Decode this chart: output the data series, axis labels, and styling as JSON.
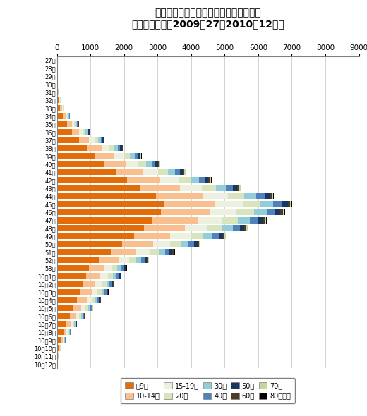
{
  "title": "東京都におけるインフルエンザの報告数",
  "subtitle": "（年齢階層別、2009年27〜2010年12週）",
  "xlim": [
    0,
    9000
  ],
  "xticks": [
    0,
    1000,
    2000,
    3000,
    4000,
    5000,
    6000,
    7000,
    8000,
    9000
  ],
  "weeks": [
    "27週",
    "28週",
    "29週",
    "30週",
    "31週",
    "32週",
    "33週",
    "34週",
    "35週",
    "36週",
    "37週",
    "38週",
    "39週",
    "40週",
    "41週",
    "42週",
    "43週",
    "44週",
    "45週",
    "46週",
    "47週",
    "48週",
    "49週",
    "50週",
    "51週",
    "52週",
    "53週",
    "10年1週",
    "10年2週",
    "10年3週",
    "10年4週",
    "10年5週",
    "10年6週",
    "10年7週",
    "10年8週",
    "10年9週",
    "10年10週",
    "10年11週",
    "10年12週"
  ],
  "colors": [
    "#e36c09",
    "#fabf8f",
    "#ebf1de",
    "#d7e4bc",
    "#92cddc",
    "#4f81bd",
    "#17375e",
    "#4d3b2c",
    "#c4d79b",
    "#000000"
  ],
  "legend_labels": [
    "〜9歳",
    "10-14歳",
    "15-19歳",
    "20代",
    "30代",
    "40代",
    "50代",
    "60代",
    "70代",
    "80歳以上"
  ],
  "data": [
    [
      3,
      1,
      0,
      0,
      0,
      0,
      0,
      0,
      0,
      0
    ],
    [
      4,
      1,
      0,
      0,
      0,
      0,
      0,
      0,
      0,
      0
    ],
    [
      6,
      2,
      1,
      1,
      1,
      0,
      0,
      0,
      0,
      0
    ],
    [
      15,
      6,
      3,
      3,
      2,
      2,
      1,
      0,
      0,
      0
    ],
    [
      30,
      14,
      8,
      5,
      4,
      3,
      2,
      1,
      0,
      0
    ],
    [
      55,
      26,
      14,
      9,
      7,
      5,
      3,
      1,
      1,
      0
    ],
    [
      100,
      47,
      26,
      17,
      12,
      8,
      5,
      2,
      1,
      1
    ],
    [
      180,
      85,
      46,
      30,
      22,
      15,
      9,
      4,
      2,
      1
    ],
    [
      300,
      141,
      77,
      50,
      36,
      25,
      15,
      7,
      4,
      2
    ],
    [
      450,
      212,
      115,
      75,
      54,
      38,
      22,
      11,
      6,
      3
    ],
    [
      650,
      306,
      167,
      108,
      78,
      54,
      32,
      16,
      9,
      5
    ],
    [
      900,
      424,
      231,
      150,
      108,
      75,
      45,
      22,
      12,
      7
    ],
    [
      1150,
      542,
      295,
      192,
      138,
      97,
      57,
      28,
      15,
      9
    ],
    [
      1400,
      660,
      359,
      234,
      169,
      118,
      70,
      34,
      19,
      11
    ],
    [
      1750,
      824,
      449,
      292,
      210,
      147,
      87,
      43,
      24,
      13
    ],
    [
      2100,
      989,
      539,
      350,
      252,
      177,
      105,
      51,
      28,
      16
    ],
    [
      2500,
      1178,
      641,
      417,
      300,
      210,
      125,
      61,
      34,
      19
    ],
    [
      2950,
      1390,
      757,
      492,
      354,
      248,
      147,
      72,
      40,
      22
    ],
    [
      3200,
      1508,
      821,
      534,
      384,
      269,
      160,
      78,
      43,
      24
    ],
    [
      3100,
      1461,
      795,
      517,
      372,
      261,
      155,
      76,
      42,
      23
    ],
    [
      2850,
      1343,
      731,
      476,
      342,
      240,
      142,
      70,
      38,
      21
    ],
    [
      2600,
      1225,
      667,
      434,
      312,
      219,
      130,
      63,
      35,
      19
    ],
    [
      2300,
      1083,
      590,
      384,
      276,
      193,
      115,
      56,
      31,
      17
    ],
    [
      1950,
      919,
      500,
      325,
      234,
      164,
      97,
      48,
      26,
      15
    ],
    [
      1600,
      754,
      411,
      267,
      192,
      135,
      80,
      39,
      22,
      12
    ],
    [
      1250,
      589,
      321,
      209,
      150,
      105,
      62,
      31,
      17,
      9
    ],
    [
      950,
      448,
      244,
      158,
      114,
      80,
      47,
      23,
      13,
      7
    ],
    [
      880,
      415,
      226,
      147,
      106,
      74,
      44,
      21,
      12,
      6
    ],
    [
      780,
      368,
      200,
      130,
      94,
      66,
      39,
      19,
      11,
      6
    ],
    [
      700,
      330,
      180,
      117,
      84,
      59,
      35,
      17,
      9,
      5
    ],
    [
      600,
      283,
      154,
      100,
      72,
      50,
      30,
      15,
      8,
      4
    ],
    [
      490,
      231,
      126,
      82,
      59,
      41,
      24,
      12,
      7,
      4
    ],
    [
      380,
      179,
      98,
      63,
      46,
      32,
      19,
      9,
      5,
      3
    ],
    [
      275,
      130,
      71,
      46,
      33,
      23,
      14,
      7,
      4,
      2
    ],
    [
      190,
      90,
      49,
      32,
      23,
      16,
      9,
      5,
      2,
      1
    ],
    [
      120,
      57,
      31,
      20,
      14,
      10,
      6,
      3,
      2,
      1
    ],
    [
      60,
      28,
      15,
      10,
      7,
      5,
      3,
      1,
      1,
      0
    ],
    [
      28,
      13,
      7,
      5,
      3,
      2,
      1,
      1,
      0,
      0
    ],
    [
      12,
      6,
      3,
      2,
      1,
      1,
      1,
      0,
      0,
      0
    ]
  ],
  "bg_color": "#ffffff"
}
